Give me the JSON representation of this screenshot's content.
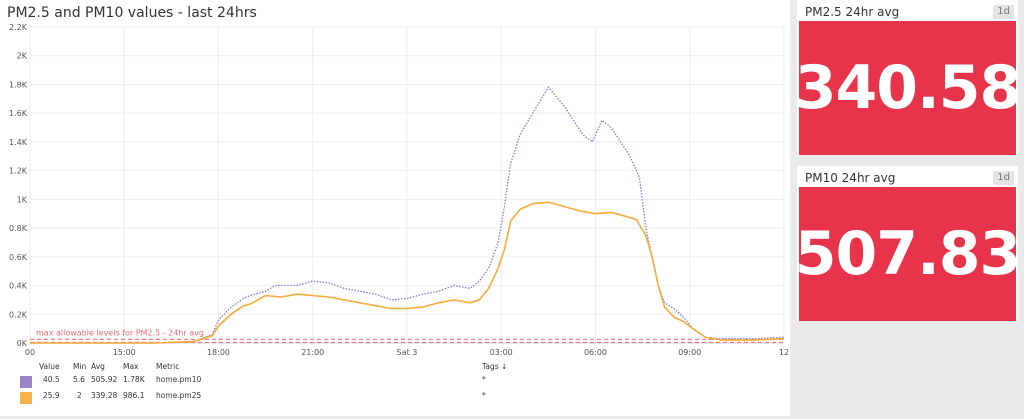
{
  "chart_panel": {
    "title": "PM2.5 and PM10 values - last 24hrs"
  },
  "chart_data": {
    "type": "line",
    "ylim": [
      0,
      2200
    ],
    "y_ticks": [
      "0K",
      "0.2K",
      "0.4K",
      "0.6K",
      "0.8K",
      "1K",
      "1.2K",
      "1.4K",
      "1.6K",
      "1.8K",
      "2K",
      "2.2K"
    ],
    "x_ticks": [
      "00",
      "15:00",
      "18:00",
      "21:00",
      "Sat 3",
      "03:00",
      "06:00",
      "09:00",
      "12"
    ],
    "x_hours": [
      12,
      15,
      18,
      21,
      24,
      27,
      30,
      33,
      36
    ],
    "threshold": {
      "value": 25,
      "label": "max allowable levels for PM2.5 - 24hr avg"
    },
    "series": [
      {
        "name": "home.pm10",
        "style": "dotted",
        "x": [
          12,
          16,
          17.2,
          17.8,
          18,
          18.4,
          18.8,
          19,
          19.5,
          19.8,
          20,
          20.5,
          21,
          21.5,
          22,
          22.5,
          23,
          23.5,
          24,
          24.5,
          25,
          25.5,
          26,
          26.3,
          26.6,
          26.9,
          27.1,
          27.3,
          27.6,
          28,
          28.5,
          29,
          29.3,
          29.6,
          29.9,
          30.2,
          30.5,
          30.8,
          31.1,
          31.4,
          31.6,
          31.8,
          32,
          32.2,
          32.5,
          32.8,
          33.1,
          33.5,
          34,
          35,
          36
        ],
        "values": [
          0,
          0,
          10,
          60,
          160,
          250,
          310,
          330,
          360,
          400,
          400,
          400,
          430,
          420,
          380,
          360,
          340,
          300,
          310,
          340,
          360,
          400,
          380,
          430,
          520,
          700,
          950,
          1250,
          1450,
          1600,
          1780,
          1650,
          1550,
          1450,
          1400,
          1550,
          1500,
          1400,
          1300,
          1150,
          800,
          600,
          400,
          280,
          240,
          180,
          100,
          40,
          30,
          30,
          40
        ]
      },
      {
        "name": "home.pm25",
        "style": "solid",
        "x": [
          12,
          16,
          17.2,
          17.8,
          18,
          18.4,
          18.8,
          19,
          19.5,
          20,
          20.5,
          21,
          21.5,
          22,
          22.5,
          23,
          23.5,
          24,
          24.5,
          25,
          25.5,
          26,
          26.3,
          26.6,
          26.9,
          27.1,
          27.3,
          27.6,
          28,
          28.5,
          29,
          29.5,
          30,
          30.5,
          31,
          31.3,
          31.6,
          31.8,
          32,
          32.2,
          32.5,
          32.8,
          33.1,
          33.5,
          34,
          35,
          36
        ],
        "values": [
          0,
          0,
          10,
          50,
          120,
          200,
          260,
          270,
          330,
          320,
          340,
          330,
          320,
          300,
          280,
          260,
          240,
          240,
          250,
          280,
          300,
          280,
          300,
          380,
          520,
          650,
          850,
          930,
          970,
          980,
          950,
          920,
          900,
          910,
          880,
          860,
          750,
          600,
          400,
          250,
          180,
          150,
          100,
          40,
          20,
          20,
          30
        ]
      }
    ]
  },
  "legend": {
    "headers": {
      "value": "Value",
      "min": "Min",
      "avg": "Avg",
      "max": "Max",
      "metric": "Metric",
      "tags": "Tags ↓"
    },
    "rows": [
      {
        "color": "#9d84c9",
        "value": "40.5",
        "min": "5.6",
        "avg": "505.92",
        "max": "1.78K",
        "metric": "home.pm10",
        "tags": "*"
      },
      {
        "color": "#f7b24a",
        "value": "25.9",
        "min": "2",
        "avg": "339.28",
        "max": "986.1",
        "metric": "home.pm25",
        "tags": "*"
      }
    ]
  },
  "stats": [
    {
      "title": "PM2.5 24hr avg",
      "badge": "1d",
      "value": "340.58",
      "color": "#e8344a"
    },
    {
      "title": "PM10 24hr avg",
      "badge": "1d",
      "value": "507.83",
      "color": "#e8344a"
    }
  ],
  "colors": {
    "pm10": "#8a78c9",
    "pm25": "#f7ab3a",
    "threshold": "#e86a75",
    "stat_bg": "#e8344a"
  }
}
